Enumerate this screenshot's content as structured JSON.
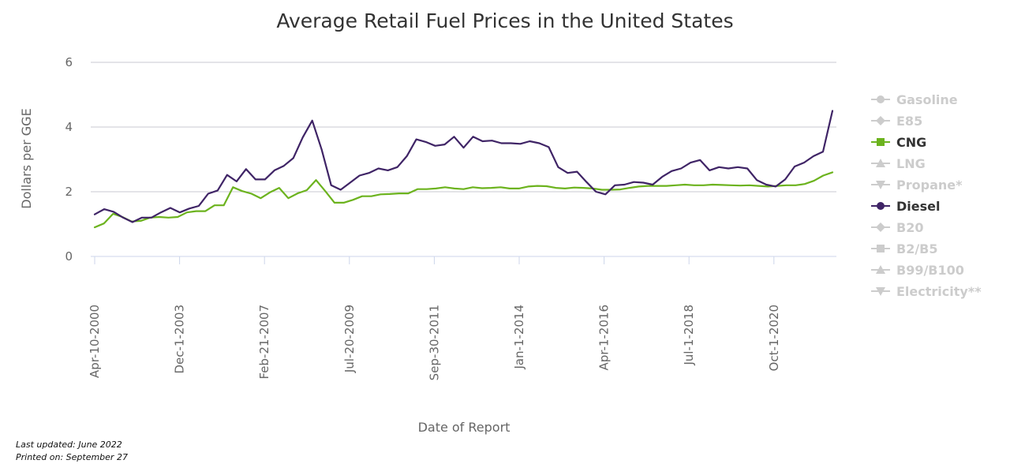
{
  "chart_data": {
    "type": "line",
    "title": "Average Retail Fuel Prices in the United States",
    "xlabel": "Date of Report",
    "ylabel": "Dollars per GGE",
    "ylim": [
      0,
      6
    ],
    "yticks": [
      "0",
      "2",
      "4",
      "6"
    ],
    "xticks": [
      "Apr-10-2000",
      "Dec-1-2003",
      "Feb-21-2007",
      "Jul-20-2009",
      "Sep-30-2011",
      "Jan-1-2014",
      "Apr-1-2016",
      "Jul-1-2018",
      "Oct-1-2020"
    ],
    "grid": true,
    "legend_position": "right",
    "legend": [
      {
        "name": "Gasoline",
        "marker": "circle",
        "active": false,
        "color": "#cccccc"
      },
      {
        "name": "E85",
        "marker": "diamond",
        "active": false,
        "color": "#cccccc"
      },
      {
        "name": "CNG",
        "marker": "square",
        "active": true,
        "color": "#6cb31e"
      },
      {
        "name": "LNG",
        "marker": "triangle",
        "active": false,
        "color": "#cccccc"
      },
      {
        "name": "Propane*",
        "marker": "triangle-down",
        "active": false,
        "color": "#cccccc"
      },
      {
        "name": "Diesel",
        "marker": "circle",
        "active": true,
        "color": "#3f2466"
      },
      {
        "name": "B20",
        "marker": "diamond",
        "active": false,
        "color": "#cccccc"
      },
      {
        "name": "B2/B5",
        "marker": "square",
        "active": false,
        "color": "#cccccc"
      },
      {
        "name": "B99/B100",
        "marker": "triangle",
        "active": false,
        "color": "#cccccc"
      },
      {
        "name": "Electricity**",
        "marker": "triangle-down",
        "active": false,
        "color": "#cccccc"
      }
    ],
    "series": [
      {
        "name": "CNG",
        "color": "#6cb31e",
        "values": [
          0.9,
          1.02,
          1.32,
          1.22,
          1.08,
          1.1,
          1.2,
          1.22,
          1.2,
          1.22,
          1.36,
          1.4,
          1.4,
          1.58,
          1.58,
          2.14,
          2.02,
          1.94,
          1.8,
          1.98,
          2.12,
          1.8,
          1.95,
          2.05,
          2.36,
          2.02,
          1.66,
          1.66,
          1.75,
          1.86,
          1.86,
          1.92,
          1.93,
          1.95,
          1.95,
          2.08,
          2.08,
          2.1,
          2.14,
          2.1,
          2.08,
          2.14,
          2.11,
          2.12,
          2.14,
          2.1,
          2.1,
          2.16,
          2.18,
          2.17,
          2.12,
          2.1,
          2.13,
          2.12,
          2.1,
          2.06,
          2.06,
          2.07,
          2.12,
          2.16,
          2.18,
          2.18,
          2.18,
          2.2,
          2.22,
          2.2,
          2.2,
          2.22,
          2.21,
          2.2,
          2.19,
          2.2,
          2.18,
          2.16,
          2.18,
          2.2,
          2.2,
          2.24,
          2.34,
          2.5,
          2.6
        ]
      },
      {
        "name": "Diesel",
        "color": "#3f2466",
        "values": [
          1.3,
          1.46,
          1.38,
          1.2,
          1.06,
          1.2,
          1.2,
          1.36,
          1.5,
          1.36,
          1.48,
          1.56,
          1.94,
          2.04,
          2.52,
          2.32,
          2.7,
          2.38,
          2.38,
          2.66,
          2.8,
          3.04,
          3.68,
          4.2,
          3.3,
          2.2,
          2.06,
          2.28,
          2.5,
          2.58,
          2.72,
          2.66,
          2.76,
          3.1,
          3.62,
          3.54,
          3.42,
          3.46,
          3.7,
          3.36,
          3.7,
          3.56,
          3.58,
          3.5,
          3.5,
          3.48,
          3.56,
          3.5,
          3.38,
          2.76,
          2.58,
          2.62,
          2.3,
          2.0,
          1.92,
          2.2,
          2.22,
          2.3,
          2.28,
          2.22,
          2.46,
          2.64,
          2.72,
          2.9,
          2.98,
          2.66,
          2.76,
          2.72,
          2.76,
          2.72,
          2.36,
          2.22,
          2.16,
          2.38,
          2.78,
          2.9,
          3.1,
          3.24,
          4.5
        ]
      }
    ]
  },
  "footer": {
    "last_updated": "Last updated: June 2022",
    "printed_on": "Printed on: September 27"
  }
}
